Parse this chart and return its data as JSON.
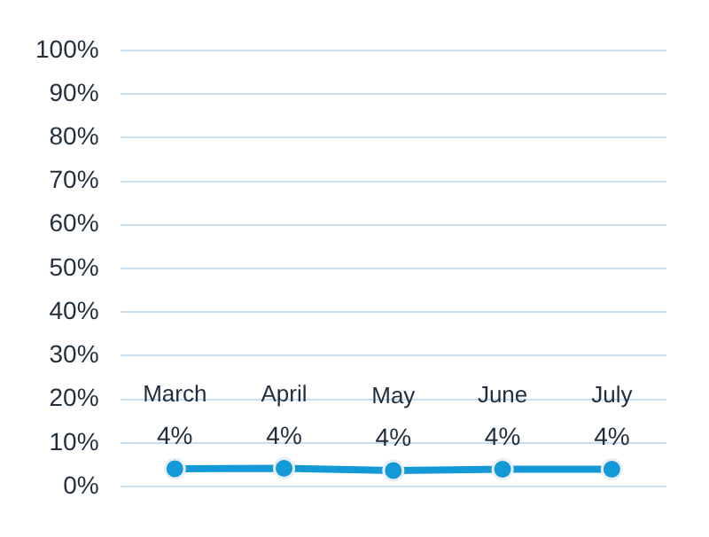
{
  "chart_data": {
    "type": "line",
    "categories": [
      "March",
      "April",
      "May",
      "June",
      "July"
    ],
    "series": [
      {
        "color": "#139ad6",
        "values": [
          4.1,
          4.2,
          3.7,
          4.0,
          4.0
        ],
        "value_labels": [
          "4%",
          "4%",
          "4%",
          "4%",
          "4%"
        ]
      }
    ],
    "ylim": [
      0,
      100
    ],
    "yticks": [
      {
        "value": 0,
        "label": "0%"
      },
      {
        "value": 10,
        "label": "10%"
      },
      {
        "value": 20,
        "label": "20%"
      },
      {
        "value": 30,
        "label": "30%"
      },
      {
        "value": 40,
        "label": "40%"
      },
      {
        "value": 50,
        "label": "50%"
      },
      {
        "value": 60,
        "label": "60%"
      },
      {
        "value": 70,
        "label": "70%"
      },
      {
        "value": 80,
        "label": "80%"
      },
      {
        "value": 90,
        "label": "90%"
      },
      {
        "value": 100,
        "label": "100%"
      }
    ],
    "grid": "y",
    "marker": "circle",
    "legend": false
  }
}
